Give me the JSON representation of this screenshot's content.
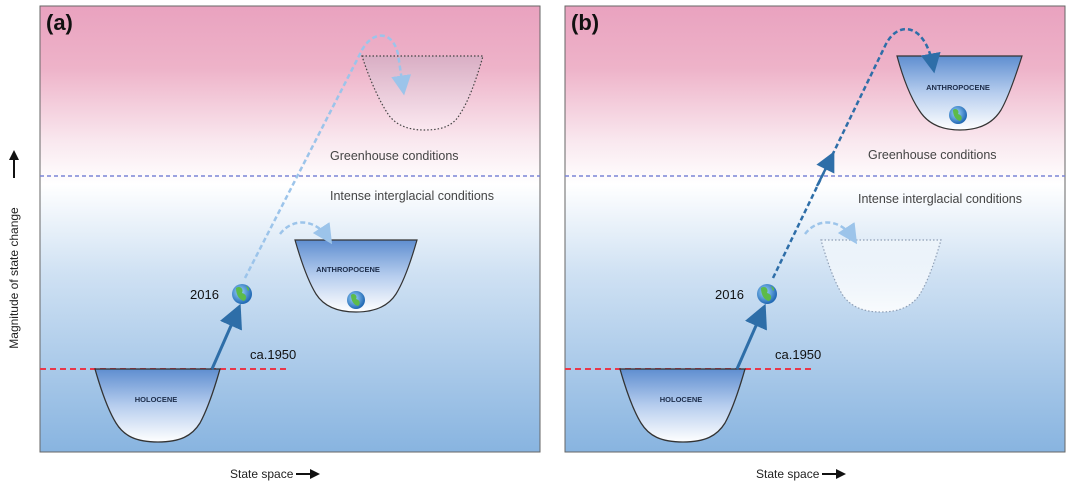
{
  "y_axis_label": "Magnitude of state change",
  "colors": {
    "top_pink": "#ea9bba",
    "bottom_blue": "#8db7e0",
    "greenhouse_boundary": "#7b84d6",
    "ca1950_line": "#e8384a",
    "arrow_solid": "#2e6ea8",
    "arrow_faded": "#9cc4ea"
  },
  "icons": {
    "earth": "earth-globe-icon"
  },
  "panels": [
    {
      "panel_label": "(a)",
      "greenhouse_label": "Greenhouse conditions",
      "interglacial_label": "Intense interglacial conditions",
      "year_2016": "2016",
      "ca1950": "ca.1950",
      "holocene_label": "HOLOCENE",
      "anthropocene_label": "ANTHROPOCENE",
      "x_label": "State space"
    },
    {
      "panel_label": "(b)",
      "greenhouse_label": "Greenhouse conditions",
      "interglacial_label": "Intense interglacial conditions",
      "year_2016": "2016",
      "ca1950": "ca.1950",
      "holocene_label": "HOLOCENE",
      "anthropocene_label": "ANTHROPOCENE",
      "x_label": "State space"
    }
  ]
}
